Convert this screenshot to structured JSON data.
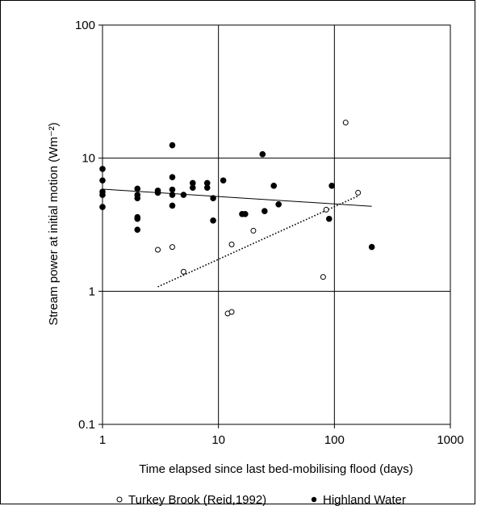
{
  "chart_data": {
    "type": "scatter",
    "xlabel": "Time elapsed since last bed-mobilising flood (days)",
    "ylabel": "Stream power at initial motion (Wm⁻²)",
    "xscale": "log",
    "yscale": "log",
    "xlim": [
      1,
      1000
    ],
    "ylim": [
      0.1,
      100
    ],
    "x_ticks": [
      "1",
      "10",
      "100",
      "1000"
    ],
    "y_ticks": [
      "0.1",
      "1",
      "10",
      "100"
    ],
    "grid": true,
    "legend_position": "bottom",
    "series": [
      {
        "name": "Turkey Brook (Reid,1992)",
        "marker": "open-circle",
        "color": "#000000",
        "points": [
          [
            3,
            2.05
          ],
          [
            4,
            2.15
          ],
          [
            5,
            1.4
          ],
          [
            12,
            0.68
          ],
          [
            13,
            0.7
          ],
          [
            13,
            2.25
          ],
          [
            20,
            2.85
          ],
          [
            80,
            1.28
          ],
          [
            85,
            4.1
          ],
          [
            125,
            18.5
          ],
          [
            160,
            5.5
          ]
        ]
      },
      {
        "name": "Highland Water",
        "marker": "filled-circle",
        "color": "#000000",
        "points": [
          [
            1,
            8.3
          ],
          [
            1,
            6.8
          ],
          [
            1,
            5.6
          ],
          [
            1,
            5.3
          ],
          [
            1,
            4.3
          ],
          [
            2,
            5.9
          ],
          [
            2,
            5.3
          ],
          [
            2,
            5.0
          ],
          [
            2,
            3.6
          ],
          [
            2,
            3.5
          ],
          [
            2,
            2.9
          ],
          [
            3,
            5.7
          ],
          [
            3,
            5.5
          ],
          [
            4,
            12.5
          ],
          [
            4,
            7.2
          ],
          [
            4,
            5.8
          ],
          [
            4,
            5.3
          ],
          [
            4,
            4.4
          ],
          [
            5,
            5.3
          ],
          [
            6,
            6.5
          ],
          [
            6,
            6.0
          ],
          [
            8,
            6.5
          ],
          [
            8,
            6.0
          ],
          [
            9,
            5.0
          ],
          [
            9,
            3.4
          ],
          [
            11,
            6.8
          ],
          [
            16,
            3.8
          ],
          [
            17,
            3.8
          ],
          [
            24,
            10.7
          ],
          [
            25,
            4.0
          ],
          [
            30,
            6.2
          ],
          [
            33,
            4.5
          ],
          [
            90,
            3.5
          ],
          [
            95,
            6.2
          ],
          [
            210,
            2.15
          ]
        ]
      }
    ],
    "trendlines": [
      {
        "series": "Highland Water",
        "style": "solid",
        "x": [
          1,
          210
        ],
        "y": [
          5.85,
          4.35
        ]
      },
      {
        "series": "Turkey Brook (Reid,1992)",
        "style": "dotted",
        "x": [
          3,
          160
        ],
        "y": [
          1.08,
          5.2
        ]
      }
    ]
  }
}
